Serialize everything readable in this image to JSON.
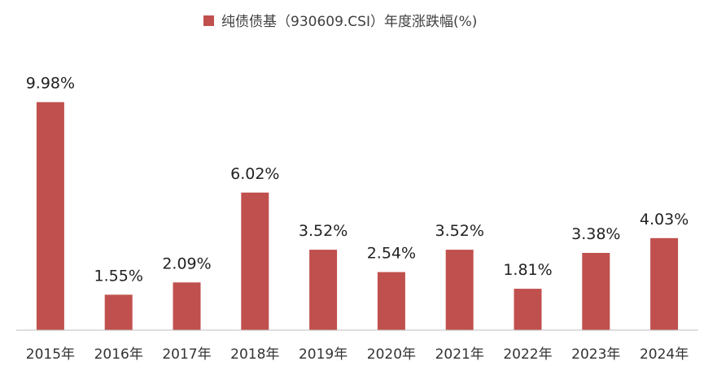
{
  "chart_data": {
    "type": "bar",
    "title": "",
    "xlabel": "",
    "ylabel": "",
    "legend": {
      "position": "top-center",
      "entries": [
        {
          "name": "纯债债基（930609.CSI）年度涨跌幅(%)",
          "color": "#C0504D"
        }
      ]
    },
    "categories": [
      "2015年",
      "2016年",
      "2017年",
      "2018年",
      "2019年",
      "2020年",
      "2021年",
      "2022年",
      "2023年",
      "2024年"
    ],
    "series": [
      {
        "name": "纯债债基（930609.CSI）年度涨跌幅(%)",
        "color": "#C0504D",
        "values": [
          9.98,
          1.55,
          2.09,
          6.02,
          3.52,
          2.54,
          3.52,
          1.81,
          3.38,
          4.03
        ],
        "labels": [
          "9.98%",
          "1.55%",
          "2.09%",
          "6.02%",
          "3.52%",
          "2.54%",
          "3.52%",
          "1.81%",
          "3.38%",
          "4.03%"
        ]
      }
    ],
    "ylim": [
      0,
      10
    ],
    "grid": false,
    "y_axis_visible": false
  }
}
